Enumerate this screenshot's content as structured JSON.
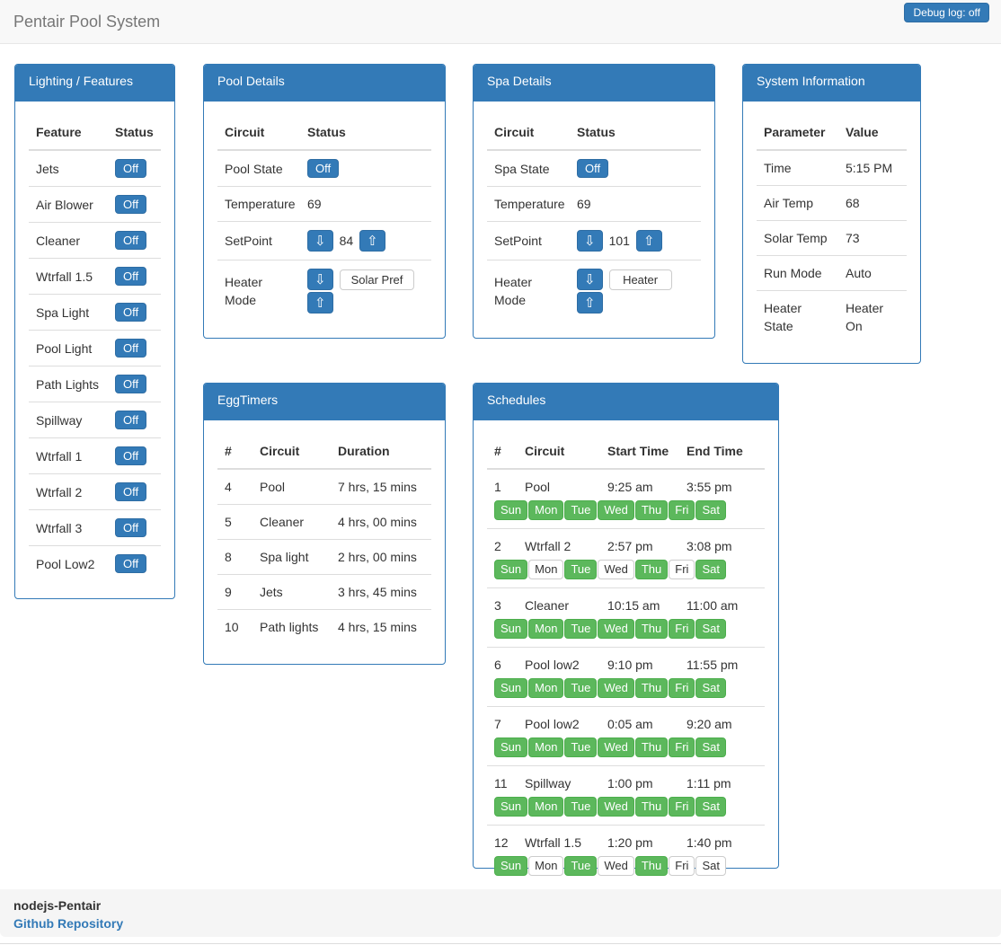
{
  "header": {
    "title": "Pentair Pool System",
    "debug_button_label": "Debug log: off"
  },
  "icons": {
    "arrow_down": "⇩",
    "arrow_up": "⇧"
  },
  "colors": {
    "primary": "#337ab7",
    "primary_border": "#2e6da4",
    "success": "#5cb85c",
    "success_border": "#4cae4c"
  },
  "panels": {
    "lighting": {
      "title": "Lighting / Features",
      "columns": [
        "Feature",
        "Status"
      ],
      "rows": [
        {
          "feature": "Jets",
          "status": "Off"
        },
        {
          "feature": "Air Blower",
          "status": "Off"
        },
        {
          "feature": "Cleaner",
          "status": "Off"
        },
        {
          "feature": "Wtrfall 1.5",
          "status": "Off"
        },
        {
          "feature": "Spa Light",
          "status": "Off"
        },
        {
          "feature": "Pool Light",
          "status": "Off"
        },
        {
          "feature": "Path Lights",
          "status": "Off"
        },
        {
          "feature": "Spillway",
          "status": "Off"
        },
        {
          "feature": "Wtrfall 1",
          "status": "Off"
        },
        {
          "feature": "Wtrfall 2",
          "status": "Off"
        },
        {
          "feature": "Wtrfall 3",
          "status": "Off"
        },
        {
          "feature": "Pool Low2",
          "status": "Off"
        }
      ]
    },
    "pool": {
      "title": "Pool Details",
      "columns": [
        "Circuit",
        "Status"
      ],
      "state_label": "Pool State",
      "state_value": "Off",
      "temp_label": "Temperature",
      "temp_value": "69",
      "setpoint_label": "SetPoint",
      "setpoint_value": "84",
      "heater_label": "Heater Mode",
      "heater_value": "Solar Pref"
    },
    "spa": {
      "title": "Spa Details",
      "columns": [
        "Circuit",
        "Status"
      ],
      "state_label": "Spa State",
      "state_value": "Off",
      "temp_label": "Temperature",
      "temp_value": "69",
      "setpoint_label": "SetPoint",
      "setpoint_value": "101",
      "heater_label": "Heater Mode",
      "heater_value": "Heater"
    },
    "system": {
      "title": "System Information",
      "columns": [
        "Parameter",
        "Value"
      ],
      "rows": [
        {
          "parameter": "Time",
          "value": "5:15 PM"
        },
        {
          "parameter": "Air Temp",
          "value": "68"
        },
        {
          "parameter": "Solar Temp",
          "value": "73"
        },
        {
          "parameter": "Run Mode",
          "value": "Auto"
        },
        {
          "parameter": "Heater State",
          "value": "Heater On"
        }
      ]
    },
    "eggtimers": {
      "title": "EggTimers",
      "columns": [
        "#",
        "Circuit",
        "Duration"
      ],
      "rows": [
        {
          "num": "4",
          "circuit": "Pool",
          "duration": "7 hrs, 15 mins"
        },
        {
          "num": "5",
          "circuit": "Cleaner",
          "duration": "4 hrs, 00 mins"
        },
        {
          "num": "8",
          "circuit": "Spa light",
          "duration": "2 hrs, 00 mins"
        },
        {
          "num": "9",
          "circuit": "Jets",
          "duration": "3 hrs, 45 mins"
        },
        {
          "num": "10",
          "circuit": "Path lights",
          "duration": "4 hrs, 15 mins"
        }
      ]
    },
    "schedules": {
      "title": "Schedules",
      "columns": [
        "#",
        "Circuit",
        "Start Time",
        "End Time"
      ],
      "day_names": [
        "Sun",
        "Mon",
        "Tue",
        "Wed",
        "Thu",
        "Fri",
        "Sat"
      ],
      "rows": [
        {
          "num": "1",
          "circuit": "Pool",
          "start": "9:25 am",
          "end": "3:55 pm",
          "days": [
            1,
            1,
            1,
            1,
            1,
            1,
            1
          ]
        },
        {
          "num": "2",
          "circuit": "Wtrfall 2",
          "start": "2:57 pm",
          "end": "3:08 pm",
          "days": [
            1,
            0,
            1,
            0,
            1,
            0,
            1
          ]
        },
        {
          "num": "3",
          "circuit": "Cleaner",
          "start": "10:15 am",
          "end": "11:00 am",
          "days": [
            1,
            1,
            1,
            1,
            1,
            1,
            1
          ]
        },
        {
          "num": "6",
          "circuit": "Pool low2",
          "start": "9:10 pm",
          "end": "11:55 pm",
          "days": [
            1,
            1,
            1,
            1,
            1,
            1,
            1
          ]
        },
        {
          "num": "7",
          "circuit": "Pool low2",
          "start": "0:05 am",
          "end": "9:20 am",
          "days": [
            1,
            1,
            1,
            1,
            1,
            1,
            1
          ]
        },
        {
          "num": "11",
          "circuit": "Spillway",
          "start": "1:00 pm",
          "end": "1:11 pm",
          "days": [
            1,
            1,
            1,
            1,
            1,
            1,
            1
          ]
        },
        {
          "num": "12",
          "circuit": "Wtrfall 1.5",
          "start": "1:20 pm",
          "end": "1:40 pm",
          "days": [
            1,
            0,
            1,
            0,
            1,
            0,
            0
          ]
        }
      ]
    }
  },
  "footer": {
    "project_name": "nodejs-Pentair",
    "link_label": "Github Repository"
  }
}
